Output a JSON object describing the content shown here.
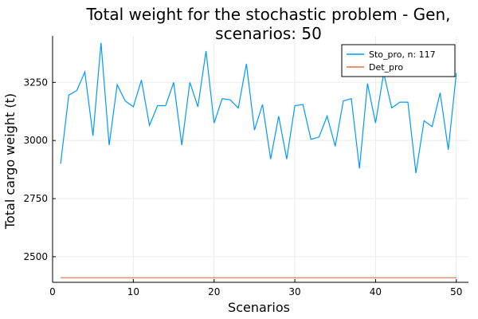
{
  "chart_data": {
    "type": "line",
    "title_line1": "Total weight for the stochastic problem - Gen,",
    "title_line2": "scenarios: 50",
    "xlabel": "Scenarios",
    "ylabel": "Total cargo weight (t)",
    "xlim": [
      0,
      51.5
    ],
    "ylim": [
      2390,
      3450
    ],
    "xticks": [
      0,
      10,
      20,
      30,
      40,
      50
    ],
    "yticks": [
      2500,
      2750,
      3000,
      3250
    ],
    "grid": true,
    "legend_position": "top-right",
    "series": [
      {
        "name": "Sto_pro, n: 117",
        "color": "#009AFA",
        "x": [
          1,
          2,
          3,
          4,
          5,
          6,
          7,
          8,
          9,
          10,
          11,
          12,
          13,
          14,
          15,
          16,
          17,
          18,
          19,
          20,
          21,
          22,
          23,
          24,
          25,
          26,
          27,
          28,
          29,
          30,
          31,
          32,
          33,
          34,
          35,
          36,
          37,
          38,
          39,
          40,
          41,
          42,
          43,
          44,
          45,
          46,
          47,
          48,
          49,
          50
        ],
        "y": [
          2900,
          3195,
          3215,
          3295,
          3020,
          3420,
          2980,
          3240,
          3170,
          3145,
          3260,
          3065,
          3150,
          3150,
          3250,
          2980,
          3250,
          3145,
          3385,
          3075,
          3180,
          3175,
          3140,
          3330,
          3045,
          3155,
          2920,
          3105,
          2920,
          3150,
          3155,
          3005,
          3015,
          3105,
          2975,
          3170,
          3180,
          2880,
          3245,
          3075,
          3290,
          3140,
          3165,
          3165,
          2860,
          3085,
          3060,
          3205,
          2960,
          3290
        ]
      },
      {
        "name": "Det_pro",
        "color": "#E36F47",
        "x": [
          1,
          2,
          3,
          4,
          5,
          6,
          7,
          8,
          9,
          10,
          11,
          12,
          13,
          14,
          15,
          16,
          17,
          18,
          19,
          20,
          21,
          22,
          23,
          24,
          25,
          26,
          27,
          28,
          29,
          30,
          31,
          32,
          33,
          34,
          35,
          36,
          37,
          38,
          39,
          40,
          41,
          42,
          43,
          44,
          45,
          46,
          47,
          48,
          49,
          50
        ],
        "y": [
          2410,
          2410,
          2410,
          2410,
          2410,
          2410,
          2410,
          2410,
          2410,
          2410,
          2410,
          2410,
          2410,
          2410,
          2410,
          2410,
          2410,
          2410,
          2410,
          2410,
          2410,
          2410,
          2410,
          2410,
          2410,
          2410,
          2410,
          2410,
          2410,
          2410,
          2410,
          2410,
          2410,
          2410,
          2410,
          2410,
          2410,
          2410,
          2410,
          2410,
          2410,
          2410,
          2410,
          2410,
          2410,
          2410,
          2410,
          2410,
          2410,
          2410
        ]
      }
    ]
  }
}
